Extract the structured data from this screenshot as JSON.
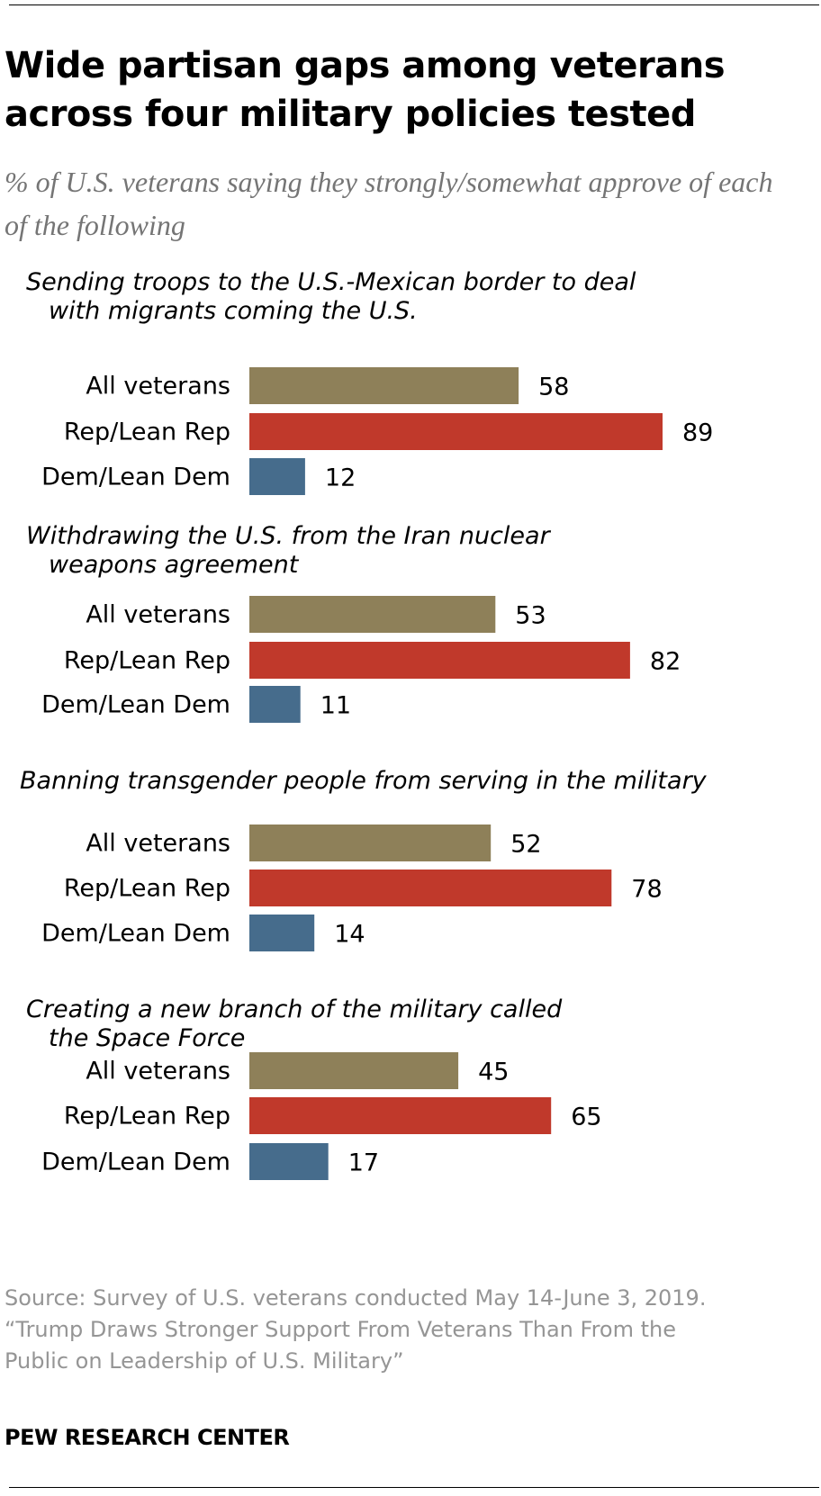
{
  "title": "Wide partisan gaps among veterans across four military policies tested",
  "subtitle": "% of U.S. veterans saying they strongly/somewhat approve of each of the following",
  "source_lines": [
    "Source: Survey of U.S. veterans conducted May 14-June 3, 2019.",
    "“Trump Draws Stronger Support From Veterans Than From the",
    "Public on Leadership of U.S. Military”"
  ],
  "footer": "PEW RESEARCH CENTER",
  "colors": {
    "all_veterans": "#8e8059",
    "rep": "#c0392b",
    "dem": "#466c8c",
    "text": "#000000",
    "muted": "#959595"
  },
  "chart_data": {
    "type": "bar",
    "orientation": "horizontal",
    "categories": [
      "All veterans",
      "Rep/Lean Rep",
      "Dem/Lean Dem"
    ],
    "xlim": [
      0,
      100
    ],
    "groups": [
      {
        "title_lines": [
          "Sending troops to the U.S.-Mexican border to deal",
          "with migrants coming the U.S."
        ],
        "values": [
          58,
          89,
          12
        ]
      },
      {
        "title_lines": [
          "Withdrawing the U.S. from the Iran nuclear",
          "weapons agreement"
        ],
        "values": [
          53,
          82,
          11
        ]
      },
      {
        "title_lines": [
          "Banning transgender people from serving in the military"
        ],
        "values": [
          52,
          78,
          14
        ]
      },
      {
        "title_lines": [
          "Creating a new branch of the military called",
          "the Space Force"
        ],
        "values": [
          45,
          65,
          17
        ]
      }
    ]
  }
}
